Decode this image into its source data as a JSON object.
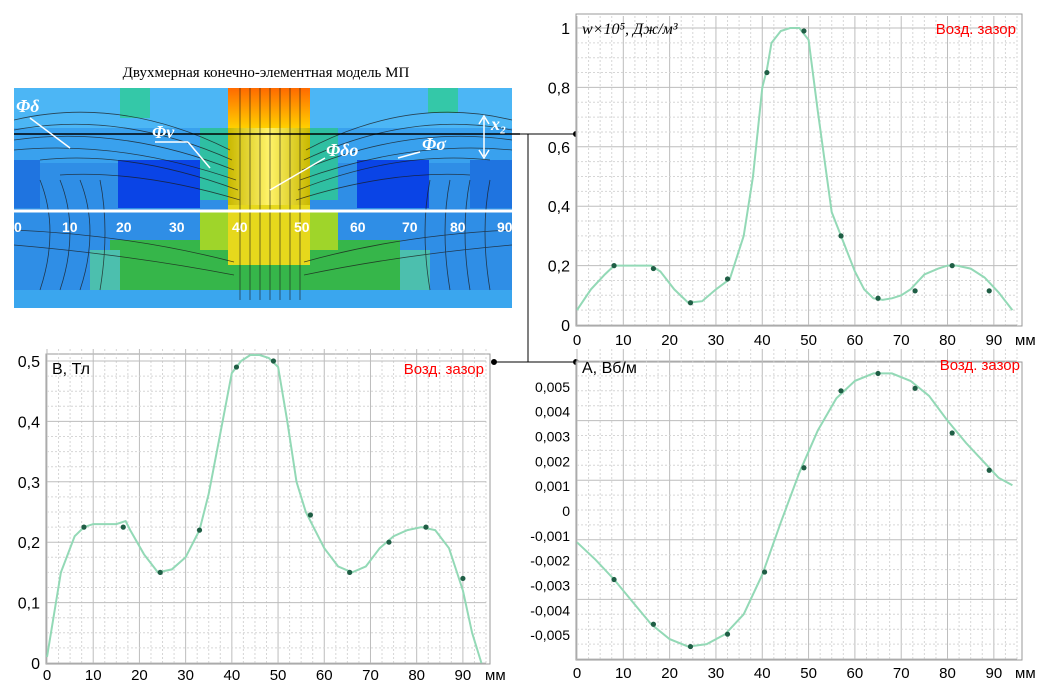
{
  "model": {
    "title": "Двухмерная конечно-элементная модель МП",
    "labels": {
      "phi_delta": "Φδ",
      "phi_v": "Φv",
      "phi_delta0": "Φδо",
      "phi_sigma": "Φσ",
      "x2": "x₂"
    },
    "scale_ticks": [
      "0",
      "10",
      "20",
      "30",
      "40",
      "50",
      "60",
      "70",
      "80",
      "90"
    ]
  },
  "chart_data": [
    {
      "id": "energy",
      "type": "line",
      "title": "",
      "ylabel": "w×10⁵, Дж/м³",
      "xlabel": "мм",
      "badge": "Возд. зазор",
      "xlim": [
        0,
        95
      ],
      "ylim": [
        0,
        1
      ],
      "xticks": [
        "0",
        "10",
        "20",
        "30",
        "40",
        "50",
        "60",
        "70",
        "80",
        "90"
      ],
      "yticks": [
        "0",
        "0,2",
        "0,4",
        "0,6",
        "0,8",
        "1"
      ],
      "x": [
        0,
        3,
        6,
        8,
        12,
        16,
        18,
        21,
        24,
        27,
        30,
        33,
        36,
        38,
        40,
        41,
        42,
        44,
        46,
        48,
        50,
        52,
        55,
        57,
        60,
        62,
        64,
        66,
        68,
        70,
        72,
        75,
        78,
        80,
        82,
        85,
        88,
        91,
        94
      ],
      "y": [
        0.05,
        0.12,
        0.17,
        0.2,
        0.2,
        0.2,
        0.18,
        0.12,
        0.075,
        0.08,
        0.12,
        0.155,
        0.3,
        0.5,
        0.8,
        0.86,
        0.95,
        0.99,
        1.0,
        1.0,
        0.96,
        0.72,
        0.38,
        0.3,
        0.18,
        0.12,
        0.09,
        0.085,
        0.09,
        0.1,
        0.12,
        0.17,
        0.19,
        0.2,
        0.2,
        0.19,
        0.16,
        0.11,
        0.05
      ],
      "markers_x": [
        8,
        16.5,
        24.5,
        32.5,
        41,
        49,
        57,
        65,
        73,
        81,
        89
      ],
      "markers_y": [
        0.2,
        0.19,
        0.075,
        0.155,
        0.85,
        0.99,
        0.3,
        0.09,
        0.115,
        0.2,
        0.115
      ]
    },
    {
      "id": "induction",
      "type": "line",
      "title": "",
      "ylabel": "B, Тл",
      "xlabel": "мм",
      "badge": "Возд. зазор",
      "xlim": [
        0,
        95
      ],
      "ylim": [
        0,
        0.5
      ],
      "xticks": [
        "0",
        "10",
        "20",
        "30",
        "40",
        "50",
        "60",
        "70",
        "80",
        "90"
      ],
      "yticks": [
        "0",
        "0,1",
        "0,2",
        "0,3",
        "0,4",
        "0,5"
      ],
      "x": [
        0,
        3,
        6,
        8,
        10,
        13,
        15,
        17,
        18,
        21,
        24,
        27,
        30,
        33,
        35,
        38,
        40,
        42,
        44,
        46,
        48,
        50,
        52,
        54,
        56,
        58,
        60,
        63,
        66,
        69,
        72,
        75,
        78,
        81,
        84,
        87,
        90,
        92,
        94
      ],
      "y": [
        0.01,
        0.15,
        0.21,
        0.225,
        0.23,
        0.23,
        0.23,
        0.235,
        0.22,
        0.18,
        0.15,
        0.155,
        0.175,
        0.22,
        0.28,
        0.4,
        0.48,
        0.5,
        0.51,
        0.51,
        0.505,
        0.49,
        0.4,
        0.3,
        0.25,
        0.22,
        0.19,
        0.16,
        0.15,
        0.16,
        0.19,
        0.21,
        0.22,
        0.225,
        0.22,
        0.19,
        0.12,
        0.05,
        0.0
      ],
      "markers_x": [
        8,
        16.5,
        24.5,
        33,
        41,
        49,
        57,
        65.5,
        74,
        82,
        90
      ],
      "markers_y": [
        0.225,
        0.225,
        0.15,
        0.22,
        0.49,
        0.5,
        0.245,
        0.15,
        0.2,
        0.225,
        0.14
      ]
    },
    {
      "id": "potential",
      "type": "line",
      "title": "",
      "ylabel": "A, Вб/м",
      "xlabel": "мм",
      "badge": "Возд. зазор",
      "xlim": [
        0,
        95
      ],
      "ylim": [
        -0.006,
        0.006
      ],
      "xticks": [
        "0",
        "10",
        "20",
        "30",
        "40",
        "50",
        "60",
        "70",
        "80",
        "90"
      ],
      "yticks": [
        "-0,005",
        "-0,004",
        "-0,003",
        "-0,002",
        "-0,001",
        "0",
        "0,001",
        "0,002",
        "0,003",
        "0,004",
        "0,005"
      ],
      "x": [
        0,
        4,
        8,
        12,
        16,
        20,
        24,
        28,
        32,
        36,
        40,
        44,
        48,
        52,
        56,
        60,
        64,
        68,
        72,
        76,
        80,
        84,
        88,
        91,
        94
      ],
      "y": [
        -0.0013,
        -0.002,
        -0.0028,
        -0.0037,
        -0.0046,
        -0.0052,
        -0.0055,
        -0.0054,
        -0.005,
        -0.0042,
        -0.0026,
        -0.0005,
        0.0015,
        0.0032,
        0.0045,
        0.0052,
        0.0055,
        0.0055,
        0.0052,
        0.0046,
        0.0036,
        0.0027,
        0.0019,
        0.0013,
        0.001
      ],
      "markers_x": [
        8,
        16.5,
        24.5,
        32.5,
        40.5,
        49,
        57,
        65,
        73,
        81,
        89
      ],
      "markers_y": [
        -0.0028,
        -0.0046,
        -0.0055,
        -0.005,
        -0.0025,
        0.0017,
        0.0048,
        0.0055,
        0.0049,
        0.0031,
        0.0016
      ]
    }
  ]
}
